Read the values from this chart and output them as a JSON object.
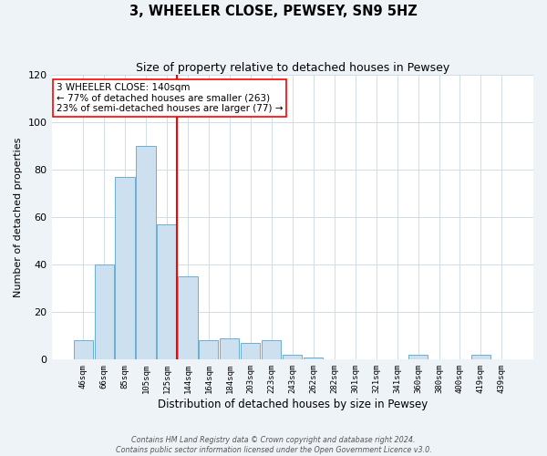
{
  "title": "3, WHEELER CLOSE, PEWSEY, SN9 5HZ",
  "subtitle": "Size of property relative to detached houses in Pewsey",
  "xlabel": "Distribution of detached houses by size in Pewsey",
  "ylabel": "Number of detached properties",
  "bar_labels": [
    "46sqm",
    "66sqm",
    "85sqm",
    "105sqm",
    "125sqm",
    "144sqm",
    "164sqm",
    "184sqm",
    "203sqm",
    "223sqm",
    "243sqm",
    "262sqm",
    "282sqm",
    "301sqm",
    "321sqm",
    "341sqm",
    "360sqm",
    "380sqm",
    "400sqm",
    "419sqm",
    "439sqm"
  ],
  "bar_heights": [
    8,
    40,
    77,
    90,
    57,
    35,
    8,
    9,
    7,
    8,
    2,
    1,
    0,
    0,
    0,
    0,
    2,
    0,
    0,
    2,
    0
  ],
  "bar_color": "#cde0ef",
  "bar_edge_color": "#6aaed6",
  "red_line_index": 5,
  "annotation_title": "3 WHEELER CLOSE: 140sqm",
  "annotation_line1": "← 77% of detached houses are smaller (263)",
  "annotation_line2": "23% of semi-detached houses are larger (77) →",
  "ylim": [
    0,
    120
  ],
  "yticks": [
    0,
    20,
    40,
    60,
    80,
    100,
    120
  ],
  "footer_line1": "Contains HM Land Registry data © Crown copyright and database right 2024.",
  "footer_line2": "Contains public sector information licensed under the Open Government Licence v3.0.",
  "background_color": "#eef3f8",
  "plot_background_color": "#ffffff",
  "grid_color": "#d0dde8"
}
